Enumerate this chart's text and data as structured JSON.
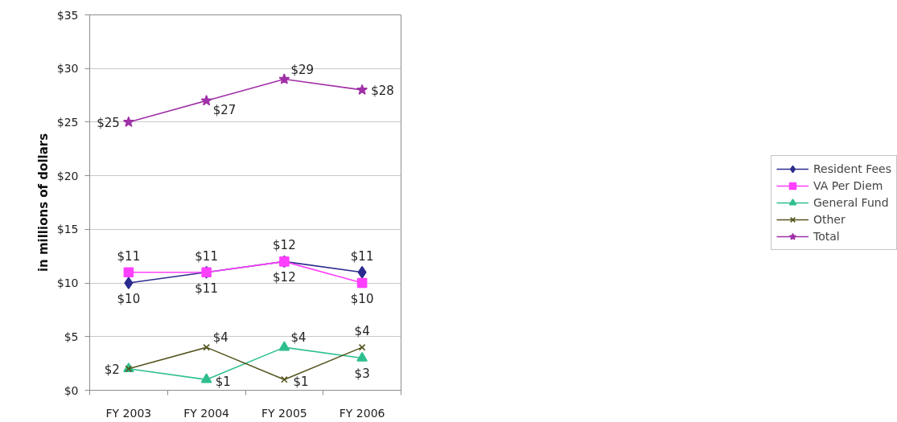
{
  "chart_data": {
    "type": "line",
    "ylabel": "in millions of dollars",
    "categories": [
      "FY 2003",
      "FY 2004",
      "FY 2005",
      "FY 2006"
    ],
    "series": [
      {
        "name": "Resident Fees",
        "color": "#2b2b8f",
        "marker": "diamond",
        "values": [
          10,
          11,
          12,
          11
        ],
        "value_labels": [
          "$10",
          "$11",
          "$12",
          "$11"
        ]
      },
      {
        "name": "VA Per Diem",
        "color": "#ff40ff",
        "marker": "square",
        "values": [
          11,
          11,
          12,
          10
        ],
        "value_labels": [
          "$11",
          "$11",
          "$12",
          "$10"
        ]
      },
      {
        "name": "General Fund",
        "color": "#2fbf8f",
        "marker": "triangle",
        "values": [
          2,
          1,
          4,
          3
        ],
        "value_labels": [
          "$2",
          "$1",
          "$4",
          "$3"
        ]
      },
      {
        "name": "Other",
        "color": "#555520",
        "marker": "cross",
        "values": [
          2,
          4,
          1,
          4
        ],
        "value_labels": [
          null,
          "$4",
          "$1",
          "$4"
        ]
      },
      {
        "name": "Total",
        "color": "#a030a8",
        "marker": "star",
        "values": [
          25,
          27,
          29,
          28
        ],
        "value_labels": [
          "$25",
          "$27",
          "$29",
          "$28"
        ]
      }
    ],
    "ylim": [
      0,
      35
    ],
    "yticks": [
      {
        "value": 0,
        "label": "$0"
      },
      {
        "value": 5,
        "label": "$5"
      },
      {
        "value": 10,
        "label": "$10"
      },
      {
        "value": 15,
        "label": "$15"
      },
      {
        "value": 20,
        "label": "$20"
      },
      {
        "value": 25,
        "label": "$25"
      },
      {
        "value": 30,
        "label": "$30"
      },
      {
        "value": 35,
        "label": "$35"
      }
    ],
    "grid": "y",
    "legend": "right",
    "line_style": "solid"
  }
}
